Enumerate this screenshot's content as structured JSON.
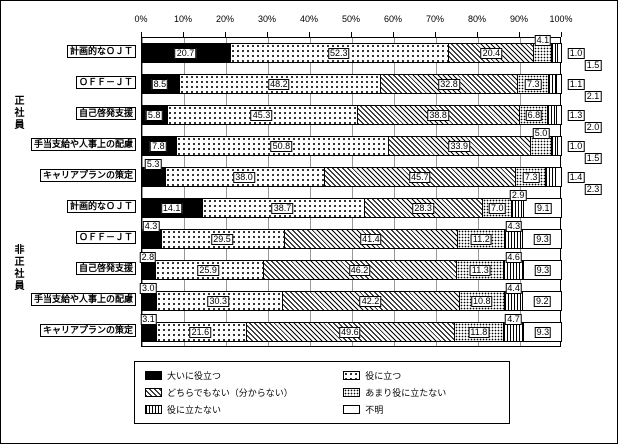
{
  "chart_data": {
    "type": "bar",
    "stacked": true,
    "orientation": "horizontal",
    "title": "",
    "xlim": [
      0,
      100
    ],
    "x_ticks": [
      "0%",
      "10%",
      "20%",
      "30%",
      "40%",
      "50%",
      "60%",
      "70%",
      "80%",
      "90%",
      "100%"
    ],
    "grid": true,
    "legend_position": "bottom",
    "legend": [
      {
        "label": "大いに役立つ",
        "pattern": "solid"
      },
      {
        "label": "役に立つ",
        "pattern": "dots"
      },
      {
        "label": "どちらでもない（分からない）",
        "pattern": "diag"
      },
      {
        "label": "あまり役に立たない",
        "pattern": "ddots"
      },
      {
        "label": "役に立たない",
        "pattern": "vlines"
      },
      {
        "label": "不明",
        "pattern": "white"
      }
    ],
    "groups": [
      {
        "name": "正社員",
        "rows": [
          {
            "label": "計画的なＯＪＴ",
            "values": [
              20.7,
              52.3,
              20.4,
              4.1,
              1.5,
              1.0
            ]
          },
          {
            "label": "ＯＦＦ－ＪＴ",
            "values": [
              8.5,
              48.2,
              32.8,
              7.3,
              2.1,
              1.1
            ]
          },
          {
            "label": "自己啓発支援",
            "values": [
              5.8,
              45.3,
              38.8,
              6.8,
              2.0,
              1.3
            ]
          },
          {
            "label": "手当支給や人事上の配慮",
            "values": [
              7.8,
              50.8,
              33.9,
              5.0,
              1.5,
              1.0
            ]
          },
          {
            "label": "キャリアプランの策定",
            "values": [
              5.3,
              38.0,
              45.7,
              7.3,
              2.3,
              1.4
            ]
          }
        ]
      },
      {
        "name": "非正社員",
        "rows": [
          {
            "label": "計画的なＯＪＴ",
            "values": [
              14.1,
              38.7,
              28.3,
              7.0,
              2.9,
              9.1
            ]
          },
          {
            "label": "ＯＦＦ－ＪＴ",
            "values": [
              4.3,
              29.5,
              41.4,
              11.2,
              4.3,
              9.3
            ]
          },
          {
            "label": "自己啓発支援",
            "values": [
              2.8,
              25.9,
              46.2,
              11.3,
              4.6,
              9.3
            ]
          },
          {
            "label": "手当支給や人事上の配慮",
            "values": [
              3.0,
              30.3,
              42.2,
              10.8,
              4.4,
              9.2
            ]
          },
          {
            "label": "キャリアプランの策定",
            "values": [
              3.1,
              21.6,
              49.6,
              11.8,
              4.7,
              9.3
            ]
          }
        ]
      }
    ]
  }
}
